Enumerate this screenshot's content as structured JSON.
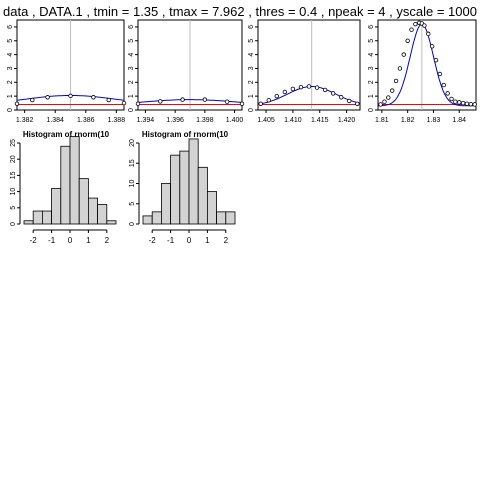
{
  "title": "data , DATA.1 , tmin = 1.35 , tmax = 7.962 , thres = 0.4 , npeak = 4 , yscale =  1000",
  "colors": {
    "fit": "#0000cc",
    "threshold": "#ff0000",
    "peakline": "#bebebe",
    "bar_fill": "#d3d3d3",
    "axis": "#000000"
  },
  "chart_data": [
    {
      "type": "line",
      "panel": 1,
      "xlim": [
        1.3815,
        1.3885
      ],
      "ylim": [
        0,
        6.5
      ],
      "xticks": [
        1.382,
        1.384,
        1.386,
        1.388
      ],
      "xtick_labels": [
        "1.382",
        "1.384",
        "1.386",
        "1.388"
      ],
      "yticks": [
        0,
        1,
        2,
        3,
        4,
        5,
        6
      ],
      "ytick_labels": [
        "0",
        "1",
        "2",
        "3",
        "4",
        "5",
        "6"
      ],
      "peak_center": 1.385,
      "peak_amp": 1.05,
      "peak_sigma": 0.003,
      "baseline": 0.35,
      "threshold": 0.4,
      "points_x": [
        1.3815,
        1.3825,
        1.3835,
        1.385,
        1.3865,
        1.3875,
        1.3885
      ],
      "points_y": [
        0.45,
        0.72,
        0.92,
        1.02,
        0.92,
        0.72,
        0.5
      ]
    },
    {
      "type": "line",
      "panel": 2,
      "xlim": [
        1.3935,
        1.4005
      ],
      "ylim": [
        0,
        6.5
      ],
      "xticks": [
        1.394,
        1.396,
        1.398,
        1.4
      ],
      "xtick_labels": [
        "1.394",
        "1.396",
        "1.398",
        "1.400"
      ],
      "yticks": [
        0,
        1,
        2,
        3,
        4,
        5,
        6
      ],
      "ytick_labels": [
        "0",
        "1",
        "2",
        "3",
        "4",
        "5",
        "6"
      ],
      "peak_center": 1.397,
      "peak_amp": 0.75,
      "peak_sigma": 0.003,
      "baseline": 0.35,
      "threshold": 0.4,
      "points_x": [
        1.3935,
        1.395,
        1.3965,
        1.398,
        1.3995,
        1.4005
      ],
      "points_y": [
        0.45,
        0.62,
        0.75,
        0.75,
        0.6,
        0.45
      ]
    },
    {
      "type": "line",
      "panel": 3,
      "xlim": [
        1.4035,
        1.4225
      ],
      "ylim": [
        0,
        6.5
      ],
      "xticks": [
        1.405,
        1.41,
        1.415,
        1.42
      ],
      "xtick_labels": [
        "1.405",
        "1.410",
        "1.415",
        "1.420"
      ],
      "yticks": [
        0,
        1,
        2,
        3,
        4,
        5,
        6
      ],
      "ytick_labels": [
        "0",
        "1",
        "2",
        "3",
        "4",
        "5",
        "6"
      ],
      "peak_center": 1.4135,
      "peak_amp": 1.7,
      "peak_sigma": 0.0045,
      "baseline": 0.3,
      "threshold": 0.4,
      "points_x": [
        1.404,
        1.4055,
        1.407,
        1.4085,
        1.41,
        1.4115,
        1.413,
        1.4145,
        1.416,
        1.4175,
        1.419,
        1.4205,
        1.422
      ],
      "points_y": [
        0.45,
        0.7,
        1.0,
        1.3,
        1.52,
        1.65,
        1.7,
        1.62,
        1.45,
        1.2,
        0.92,
        0.65,
        0.45
      ]
    },
    {
      "type": "line",
      "panel": 4,
      "xlim": [
        1.8085,
        1.8465
      ],
      "ylim": [
        0,
        6.5
      ],
      "xticks": [
        1.81,
        1.82,
        1.83,
        1.84
      ],
      "xtick_labels": [
        "1.81",
        "1.82",
        "1.83",
        "1.84"
      ],
      "yticks": [
        0,
        1,
        2,
        3,
        4,
        5,
        6
      ],
      "ytick_labels": [
        "0",
        "1",
        "2",
        "3",
        "4",
        "5",
        "6"
      ],
      "peak_center": 1.8255,
      "peak_amp": 6.2,
      "peak_sigma": 0.0045,
      "baseline": 0.3,
      "threshold": 0.4,
      "points_x": [
        1.8095,
        1.811,
        1.8125,
        1.814,
        1.8155,
        1.817,
        1.8185,
        1.82,
        1.8215,
        1.823,
        1.8245,
        1.8255,
        1.8265,
        1.828,
        1.8295,
        1.831,
        1.8325,
        1.834,
        1.8355,
        1.837,
        1.8385,
        1.84,
        1.8415,
        1.843,
        1.8445,
        1.846
      ],
      "points_y": [
        0.4,
        0.6,
        0.9,
        1.4,
        2.1,
        3.0,
        4.0,
        5.0,
        5.8,
        6.2,
        6.3,
        6.25,
        6.1,
        5.5,
        4.6,
        3.6,
        2.6,
        1.8,
        1.2,
        0.8,
        0.6,
        0.55,
        0.5,
        0.45,
        0.42,
        0.4
      ]
    },
    {
      "type": "bar",
      "panel": 5,
      "title": "Histogram of rnorm(10",
      "bin_edges": [
        -2.5,
        -2,
        -1.5,
        -1,
        -0.5,
        0,
        0.5,
        1,
        1.5,
        2,
        2.5
      ],
      "counts": [
        1,
        4,
        4,
        11,
        24,
        27,
        14,
        8,
        6,
        1
      ],
      "xlim": [
        -2.5,
        2.5
      ],
      "ylim": [
        0,
        25
      ],
      "xticks": [
        -2,
        -1,
        0,
        1,
        2
      ],
      "xtick_labels": [
        "-2",
        "-1",
        "0",
        "1",
        "2"
      ],
      "yticks": [
        0,
        5,
        10,
        15,
        20,
        25
      ],
      "ytick_labels": [
        "0",
        "5",
        "10",
        "15",
        "20",
        "25"
      ]
    },
    {
      "type": "bar",
      "panel": 6,
      "title": "Histogram of rnorm(10",
      "bin_edges": [
        -2.5,
        -2,
        -1.5,
        -1,
        -0.5,
        0,
        0.5,
        1,
        1.5,
        2,
        2.5
      ],
      "counts": [
        2,
        3,
        10,
        17,
        18,
        21,
        14,
        8,
        3,
        3
      ],
      "xlim": [
        -2.5,
        2.5
      ],
      "ylim": [
        0,
        20
      ],
      "xticks": [
        -2,
        -1,
        0,
        1,
        2
      ],
      "xtick_labels": [
        "-2",
        "-1",
        "0",
        "1",
        "2"
      ],
      "yticks": [
        0,
        5,
        10,
        15,
        20
      ],
      "ytick_labels": [
        "0",
        "5",
        "10",
        "15",
        "20"
      ]
    }
  ]
}
